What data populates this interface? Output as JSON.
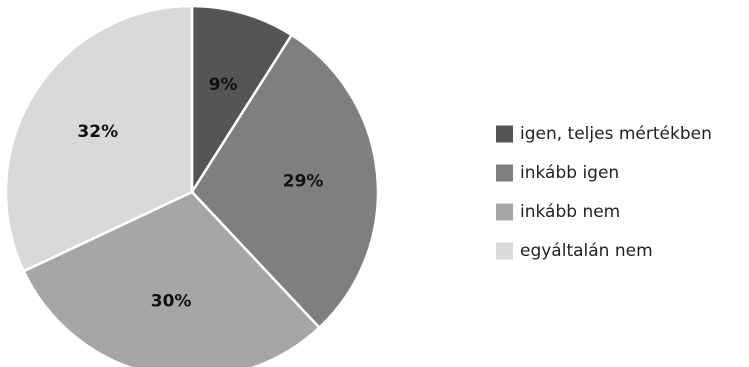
{
  "chart_data": {
    "type": "pie",
    "start_angle": "12 o'clock",
    "direction": "clockwise",
    "legend_position": "right",
    "slices": [
      {
        "label": "igen, teljes mértékben",
        "value": 9,
        "value_label": "9%",
        "color": "#555555"
      },
      {
        "label": "inkább igen",
        "value": 29,
        "value_label": "29%",
        "color": "#7f7f7f"
      },
      {
        "label": "inkább nem",
        "value": 30,
        "value_label": "30%",
        "color": "#a6a6a6"
      },
      {
        "label": "egyáltalán nem",
        "value": 32,
        "value_label": "32%",
        "color": "#d9d9d9"
      }
    ]
  }
}
